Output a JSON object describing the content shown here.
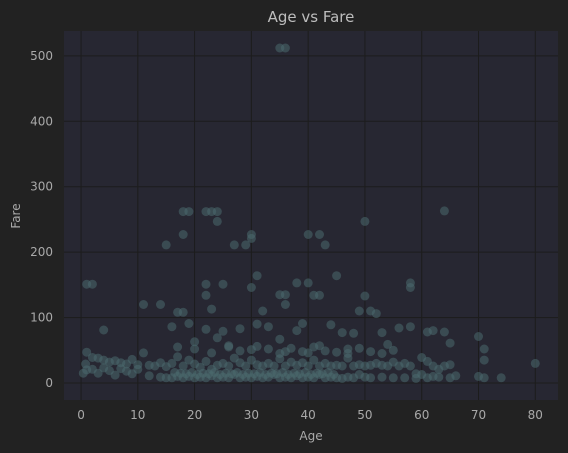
{
  "chart_data": {
    "type": "scatter",
    "title": "Age vs Fare",
    "xlabel": "Age",
    "ylabel": "Fare",
    "xlim": [
      -3,
      84
    ],
    "ylim": [
      -26,
      538
    ],
    "xticks": [
      "0",
      "10",
      "20",
      "30",
      "40",
      "50",
      "60",
      "70",
      "80"
    ],
    "yticks": [
      "0",
      "100",
      "200",
      "300",
      "400",
      "500"
    ],
    "grid": true,
    "colors": {
      "background": "#222222",
      "plot_area": "#272732",
      "grid": "#1c1c1c",
      "point": "#4b6a6e",
      "text": "#a9a9a9"
    },
    "series": [
      {
        "points": [
          [
            35,
            512
          ],
          [
            36,
            512
          ],
          [
            18,
            262
          ],
          [
            19,
            262
          ],
          [
            22,
            262
          ],
          [
            23,
            262
          ],
          [
            24,
            262
          ],
          [
            24,
            247
          ],
          [
            64,
            263
          ],
          [
            50,
            247
          ],
          [
            18,
            227
          ],
          [
            30,
            227
          ],
          [
            30,
            221
          ],
          [
            40,
            227
          ],
          [
            42,
            227
          ],
          [
            43,
            211
          ],
          [
            27,
            211
          ],
          [
            29,
            211
          ],
          [
            15,
            211
          ],
          [
            1,
            151
          ],
          [
            2,
            151
          ],
          [
            22,
            151
          ],
          [
            25,
            151
          ],
          [
            36,
            135
          ],
          [
            38,
            153
          ],
          [
            40,
            153
          ],
          [
            58,
            153
          ],
          [
            58,
            146
          ],
          [
            31,
            164
          ],
          [
            45,
            164
          ],
          [
            22,
            134
          ],
          [
            41,
            134
          ],
          [
            42,
            134
          ],
          [
            50,
            133
          ],
          [
            30,
            146
          ],
          [
            35,
            135
          ],
          [
            49,
            110
          ],
          [
            18,
            108
          ],
          [
            23,
            113
          ],
          [
            32,
            110
          ],
          [
            11,
            120
          ],
          [
            14,
            120
          ],
          [
            17,
            108
          ],
          [
            36,
            120
          ],
          [
            51,
            110
          ],
          [
            52,
            106
          ],
          [
            4,
            81
          ],
          [
            16,
            86
          ],
          [
            19,
            91
          ],
          [
            22,
            82
          ],
          [
            25,
            79
          ],
          [
            28,
            83
          ],
          [
            31,
            90
          ],
          [
            33,
            86
          ],
          [
            38,
            80
          ],
          [
            39,
            91
          ],
          [
            44,
            89
          ],
          [
            46,
            77
          ],
          [
            48,
            76
          ],
          [
            53,
            77
          ],
          [
            56,
            84
          ],
          [
            61,
            78
          ],
          [
            62,
            80
          ],
          [
            64,
            78
          ],
          [
            70,
            71
          ],
          [
            71,
            52
          ],
          [
            71,
            35
          ],
          [
            58,
            86
          ],
          [
            24,
            69
          ],
          [
            35,
            67
          ],
          [
            54,
            59
          ],
          [
            26,
            57
          ],
          [
            20,
            63
          ],
          [
            42,
            57
          ],
          [
            47,
            52
          ],
          [
            30,
            51
          ],
          [
            55,
            50
          ],
          [
            36,
            48
          ],
          [
            40,
            46
          ],
          [
            17,
            55
          ],
          [
            65,
            61
          ],
          [
            1,
            47
          ],
          [
            2,
            39
          ],
          [
            3,
            38
          ],
          [
            4,
            35
          ],
          [
            5,
            32
          ],
          [
            6,
            34
          ],
          [
            7,
            31
          ],
          [
            8,
            29
          ],
          [
            9,
            36
          ],
          [
            10,
            28
          ],
          [
            11,
            46
          ],
          [
            12,
            27
          ],
          [
            13,
            26
          ],
          [
            14,
            31
          ],
          [
            15,
            25
          ],
          [
            16,
            30
          ],
          [
            17,
            40
          ],
          [
            18,
            26
          ],
          [
            19,
            35
          ],
          [
            20,
            29
          ],
          [
            21,
            24
          ],
          [
            22,
            33
          ],
          [
            23,
            21
          ],
          [
            24,
            27
          ],
          [
            25,
            30
          ],
          [
            26,
            26
          ],
          [
            27,
            38
          ],
          [
            28,
            31
          ],
          [
            29,
            26
          ],
          [
            30,
            35
          ],
          [
            31,
            28
          ],
          [
            32,
            26
          ],
          [
            33,
            30
          ],
          [
            34,
            26
          ],
          [
            35,
            37
          ],
          [
            36,
            26
          ],
          [
            37,
            32
          ],
          [
            38,
            27
          ],
          [
            39,
            31
          ],
          [
            40,
            26
          ],
          [
            41,
            35
          ],
          [
            42,
            26
          ],
          [
            43,
            30
          ],
          [
            44,
            26
          ],
          [
            45,
            27
          ],
          [
            46,
            26
          ],
          [
            47,
            38
          ],
          [
            48,
            26
          ],
          [
            49,
            28
          ],
          [
            50,
            26
          ],
          [
            51,
            27
          ],
          [
            52,
            30
          ],
          [
            53,
            27
          ],
          [
            54,
            26
          ],
          [
            55,
            32
          ],
          [
            56,
            26
          ],
          [
            57,
            30
          ],
          [
            58,
            26
          ],
          [
            59,
            14
          ],
          [
            60,
            39
          ],
          [
            61,
            33
          ],
          [
            62,
            26
          ],
          [
            63,
            21
          ],
          [
            64,
            26
          ],
          [
            65,
            28
          ],
          [
            66,
            11
          ],
          [
            70,
            10
          ],
          [
            71,
            8
          ],
          [
            74,
            8
          ],
          [
            80,
            30
          ],
          [
            0.4,
            15
          ],
          [
            0.8,
            29
          ],
          [
            1,
            20
          ],
          [
            2,
            21
          ],
          [
            3,
            15
          ],
          [
            4,
            23
          ],
          [
            5,
            19
          ],
          [
            6,
            12
          ],
          [
            7,
            22
          ],
          [
            8,
            18
          ],
          [
            9,
            14
          ],
          [
            10,
            21
          ],
          [
            12,
            11
          ],
          [
            14,
            9
          ],
          [
            15,
            8
          ],
          [
            16,
            8
          ],
          [
            17,
            10
          ],
          [
            18,
            8
          ],
          [
            19,
            10
          ],
          [
            20,
            8
          ],
          [
            21,
            9
          ],
          [
            22,
            8
          ],
          [
            23,
            11
          ],
          [
            24,
            8
          ],
          [
            25,
            9
          ],
          [
            26,
            8
          ],
          [
            27,
            13
          ],
          [
            28,
            8
          ],
          [
            29,
            9
          ],
          [
            30,
            8
          ],
          [
            31,
            10
          ],
          [
            32,
            8
          ],
          [
            33,
            9
          ],
          [
            34,
            13
          ],
          [
            35,
            8
          ],
          [
            36,
            9
          ],
          [
            37,
            8
          ],
          [
            38,
            11
          ],
          [
            39,
            8
          ],
          [
            40,
            9
          ],
          [
            41,
            8
          ],
          [
            42,
            13
          ],
          [
            43,
            8
          ],
          [
            44,
            9
          ],
          [
            45,
            8
          ],
          [
            46,
            7
          ],
          [
            47,
            9
          ],
          [
            48,
            8
          ],
          [
            49,
            13
          ],
          [
            50,
            9
          ],
          [
            51,
            8
          ],
          [
            53,
            9
          ],
          [
            55,
            8
          ],
          [
            57,
            8
          ],
          [
            59,
            7
          ],
          [
            60,
            13
          ],
          [
            61,
            8
          ],
          [
            62,
            10
          ],
          [
            63,
            9
          ],
          [
            65,
            8
          ],
          [
            16.5,
            16
          ],
          [
            17.5,
            15
          ],
          [
            18.5,
            14
          ],
          [
            19.5,
            16
          ],
          [
            20.5,
            13
          ],
          [
            21.5,
            15
          ],
          [
            22.5,
            14
          ],
          [
            23.5,
            16
          ],
          [
            24.5,
            13
          ],
          [
            25.5,
            15
          ],
          [
            26.5,
            14
          ],
          [
            27.5,
            16
          ],
          [
            28.5,
            13
          ],
          [
            29.5,
            15
          ],
          [
            30.5,
            14
          ],
          [
            31.5,
            16
          ],
          [
            32.5,
            13
          ],
          [
            33.5,
            15
          ],
          [
            34.5,
            14
          ],
          [
            35.5,
            16
          ],
          [
            36.5,
            13
          ],
          [
            37.5,
            15
          ],
          [
            38.5,
            14
          ],
          [
            39.5,
            16
          ],
          [
            40.5,
            13
          ],
          [
            41.5,
            15
          ],
          [
            42.5,
            14
          ],
          [
            43.5,
            16
          ],
          [
            44.5,
            13
          ],
          [
            20,
            52
          ],
          [
            23,
            46
          ],
          [
            26,
            55
          ],
          [
            28,
            49
          ],
          [
            31,
            56
          ],
          [
            33,
            52
          ],
          [
            35,
            45
          ],
          [
            37,
            53
          ],
          [
            39,
            48
          ],
          [
            41,
            55
          ],
          [
            43,
            49
          ],
          [
            45,
            47
          ],
          [
            47,
            45
          ],
          [
            49,
            53
          ],
          [
            51,
            48
          ],
          [
            53,
            45
          ]
        ]
      }
    ]
  }
}
